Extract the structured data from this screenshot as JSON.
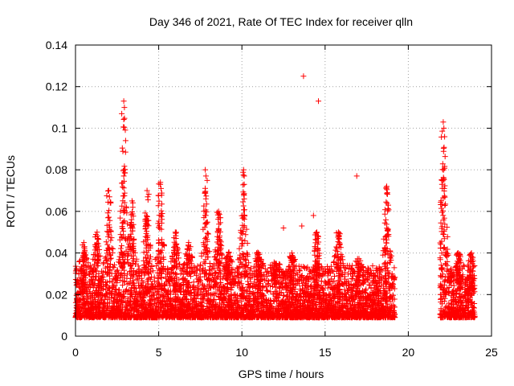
{
  "chart_data": {
    "type": "scatter",
    "title": "Day 346 of 2021, Rate Of TEC Index for receiver qlln",
    "xlabel": "GPS time / hours",
    "ylabel": "ROTI / TECUs",
    "xlim": [
      0,
      25
    ],
    "ylim": [
      0,
      0.14
    ],
    "xticks": [
      "0",
      "5",
      "10",
      "15",
      "20",
      "25"
    ],
    "yticks": [
      "0",
      "0.02",
      "0.04",
      "0.06",
      "0.08",
      "0.1",
      "0.12",
      "0.14"
    ],
    "grid": true,
    "marker": "+",
    "color": "#ff0000",
    "series": [
      {
        "name": "ROTI",
        "clusters": [
          {
            "x_range": [
              0.0,
              19.2
            ],
            "baseline": [
              0.005,
              0.03
            ],
            "peaks": [
              {
                "x": 0.5,
                "max": 0.045
              },
              {
                "x": 1.3,
                "max": 0.05
              },
              {
                "x": 2.0,
                "max": 0.07
              },
              {
                "x": 2.9,
                "max": 0.113
              },
              {
                "x": 3.4,
                "max": 0.065
              },
              {
                "x": 4.3,
                "max": 0.07
              },
              {
                "x": 5.1,
                "max": 0.074
              },
              {
                "x": 6.0,
                "max": 0.05
              },
              {
                "x": 6.8,
                "max": 0.045
              },
              {
                "x": 7.8,
                "max": 0.08
              },
              {
                "x": 8.6,
                "max": 0.06
              },
              {
                "x": 9.2,
                "max": 0.04
              },
              {
                "x": 10.1,
                "max": 0.08
              },
              {
                "x": 11.0,
                "max": 0.04
              },
              {
                "x": 12.0,
                "max": 0.035
              },
              {
                "x": 13.0,
                "max": 0.04
              },
              {
                "x": 14.5,
                "max": 0.05
              },
              {
                "x": 15.8,
                "max": 0.05
              },
              {
                "x": 17.0,
                "max": 0.035
              },
              {
                "x": 18.7,
                "max": 0.072
              }
            ]
          },
          {
            "x_range": [
              21.9,
              24.0
            ],
            "baseline": [
              0.005,
              0.03
            ],
            "peaks": [
              {
                "x": 22.1,
                "max": 0.103
              },
              {
                "x": 23.0,
                "max": 0.04
              },
              {
                "x": 23.8,
                "max": 0.04
              }
            ]
          }
        ],
        "outliers": [
          {
            "x": 13.7,
            "y": 0.125
          },
          {
            "x": 14.6,
            "y": 0.113
          },
          {
            "x": 12.5,
            "y": 0.052
          },
          {
            "x": 16.9,
            "y": 0.077
          },
          {
            "x": 18.8,
            "y": 0.063
          },
          {
            "x": 14.3,
            "y": 0.058
          },
          {
            "x": 13.6,
            "y": 0.053
          }
        ]
      }
    ]
  }
}
